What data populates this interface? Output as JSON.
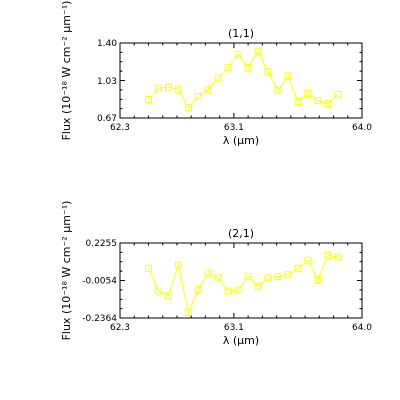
{
  "chart_data": [
    {
      "type": "line",
      "title": "(1,1)",
      "xlabel": "λ (μm)",
      "ylabel": "Flux (10⁻¹⁸ W cm⁻² μm⁻¹)",
      "xlim": [
        62.3,
        64.0
      ],
      "ylim": [
        0.67,
        1.4
      ],
      "xticks": [
        "62.3",
        "63.1",
        "64.0"
      ],
      "yticks": [
        "0.67",
        "1.03",
        "1.40"
      ],
      "marker": "square-open",
      "color": "#ffff00",
      "x": [
        62.5,
        62.57,
        62.64,
        62.71,
        62.78,
        62.85,
        62.92,
        62.99,
        63.06,
        63.13,
        63.2,
        63.27,
        63.34,
        63.41,
        63.48,
        63.55,
        63.62,
        63.69,
        63.76,
        63.83
      ],
      "y": [
        0.85,
        0.96,
        0.97,
        0.95,
        0.77,
        0.88,
        0.95,
        1.06,
        1.16,
        1.29,
        1.16,
        1.32,
        1.12,
        0.94,
        1.08,
        0.83,
        0.91,
        0.84,
        0.81,
        0.9
      ]
    },
    {
      "type": "line",
      "title": "(2,1)",
      "xlabel": "λ (μm)",
      "ylabel": "Flux (10⁻¹⁸ W cm⁻² μm⁻¹)",
      "xlim": [
        62.3,
        64.0
      ],
      "ylim": [
        -0.2364,
        0.2255
      ],
      "xticks": [
        "62.3",
        "63.1",
        "64.0"
      ],
      "yticks": [
        "-0.2364",
        "-0.0054",
        "0.2255"
      ],
      "marker": "square-open",
      "color": "#ffff00",
      "x": [
        62.5,
        62.57,
        62.64,
        62.71,
        62.78,
        62.85,
        62.92,
        62.99,
        63.06,
        63.13,
        63.2,
        63.27,
        63.34,
        63.41,
        63.48,
        63.55,
        63.62,
        63.69,
        63.76,
        63.83
      ],
      "y": [
        0.07,
        -0.07,
        -0.1,
        0.09,
        -0.2,
        -0.06,
        0.04,
        0.01,
        -0.07,
        -0.065,
        0.02,
        -0.04,
        0.01,
        0.02,
        0.03,
        0.07,
        0.12,
        0.0,
        0.15,
        0.14
      ]
    }
  ]
}
